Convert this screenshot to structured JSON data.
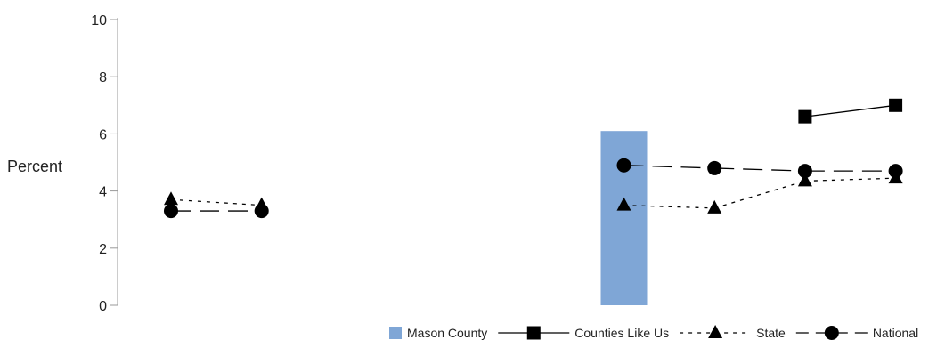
{
  "chart_data": {
    "type": "line",
    "title": "",
    "xlabel": "",
    "ylabel": "Percent",
    "ylim": [
      0,
      10
    ],
    "yticks": [
      0,
      2,
      4,
      6,
      8,
      10
    ],
    "grid": false,
    "legend_position": "bottom-right",
    "categories": [
      "1",
      "2",
      "3",
      "4",
      "5",
      "6",
      "7",
      "8",
      "9"
    ],
    "category_labels_shown": false,
    "series": [
      {
        "name": "Mason County",
        "kind": "bar",
        "color": "#7fa6d6",
        "values": [
          null,
          null,
          null,
          null,
          null,
          6.1,
          null,
          null,
          null
        ]
      },
      {
        "name": "Counties Like Us",
        "kind": "line",
        "marker": "square",
        "dash": "solid",
        "color": "#000000",
        "values": [
          null,
          null,
          null,
          null,
          null,
          null,
          null,
          6.6,
          7.0
        ]
      },
      {
        "name": "State",
        "kind": "line",
        "marker": "triangle",
        "dash": "dotted",
        "color": "#000000",
        "values": [
          3.7,
          3.5,
          null,
          null,
          null,
          3.5,
          3.4,
          4.35,
          4.45
        ]
      },
      {
        "name": "National",
        "kind": "line",
        "marker": "circle",
        "dash": "longdash",
        "color": "#000000",
        "values": [
          3.3,
          3.3,
          null,
          null,
          null,
          4.9,
          4.8,
          4.7,
          4.7
        ]
      }
    ]
  }
}
